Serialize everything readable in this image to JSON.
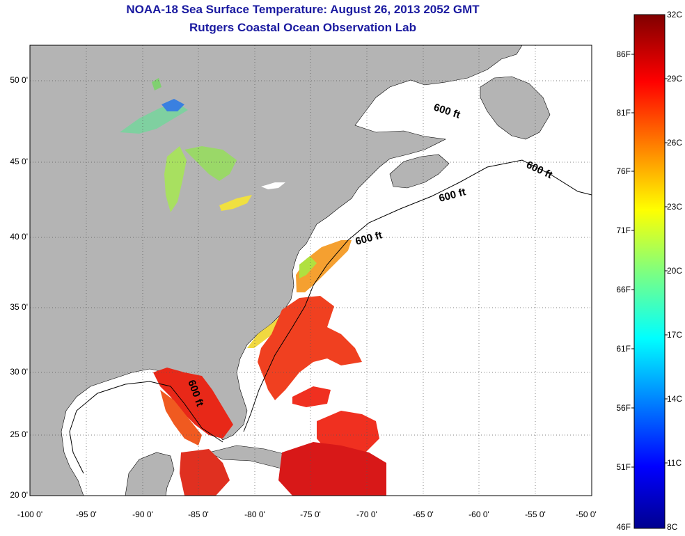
{
  "title": {
    "line1": "NOAA-18 Sea Surface Temperature:  August 26, 2013 2052 GMT",
    "line2": "Rutgers Coastal Ocean Observation Lab"
  },
  "map": {
    "lon_range": [
      -100,
      -50
    ],
    "lat_range": [
      20,
      52.5
    ],
    "lon_ticks": [
      "-100 0'",
      "-95 0'",
      "-90 0'",
      "-85 0'",
      "-80 0'",
      "-75 0'",
      "-70 0'",
      "-65 0'",
      "-60 0'",
      "-55 0'",
      "-50 0'"
    ],
    "lat_ticks": [
      "20 0'",
      "25 0'",
      "30 0'",
      "35 0'",
      "40 0'",
      "45 0'",
      "50 0'"
    ],
    "isobath_labels": [
      "600 ft",
      "600 ft",
      "600 ft",
      "600 ft",
      "600 ft"
    ],
    "land_color": "#b4b4b4",
    "water_no_data_color": "#ffffff",
    "grid": "dotted"
  },
  "colorbar": {
    "celsius_labels": [
      "32C",
      "29C",
      "26C",
      "23C",
      "20C",
      "17C",
      "14C",
      "11C",
      "8C"
    ],
    "fahrenheit_labels": [
      "86F",
      "81F",
      "76F",
      "71F",
      "66F",
      "61F",
      "56F",
      "51F",
      "46F"
    ],
    "range_c": [
      8,
      32
    ]
  }
}
